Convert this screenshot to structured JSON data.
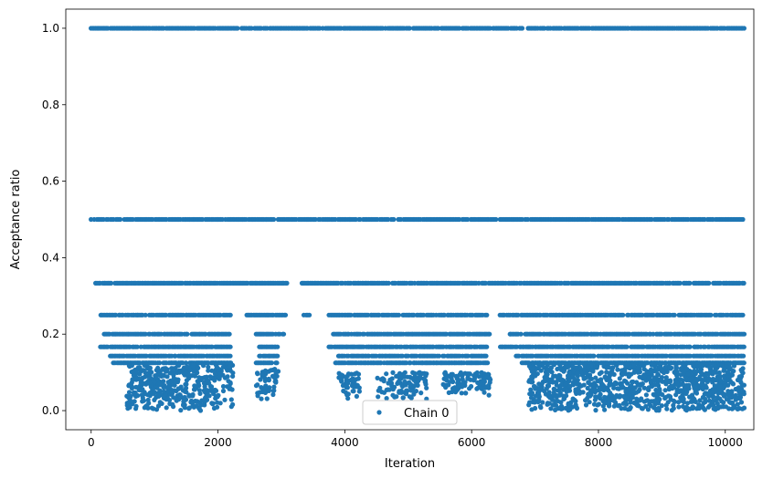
{
  "chart_data": {
    "type": "scatter",
    "title": "",
    "xlabel": "Iteration",
    "ylabel": "Acceptance ratio",
    "xlim": [
      -400,
      10450
    ],
    "ylim": [
      -0.05,
      1.05
    ],
    "x_ticks": [
      0,
      2000,
      4000,
      6000,
      8000,
      10000
    ],
    "x_tick_labels": [
      "0",
      "2000",
      "4000",
      "6000",
      "8000",
      "10000"
    ],
    "y_ticks": [
      0.0,
      0.2,
      0.4,
      0.6,
      0.8,
      1.0
    ],
    "y_tick_labels": [
      "0.0",
      "0.2",
      "0.4",
      "0.6",
      "0.8",
      "1.0"
    ],
    "grid": false,
    "legend_position": "bottom-center",
    "series": [
      {
        "name": "Chain 0",
        "color": "#1f77b4",
        "marker": "circle",
        "bands": [
          {
            "y": 1.0,
            "segments": [
              [
                0,
                10300
              ]
            ]
          },
          {
            "y": 0.5,
            "segments": [
              [
                0,
                10300
              ]
            ]
          },
          {
            "y": 0.3333,
            "segments": [
              [
                50,
                3100
              ],
              [
                3300,
                10300
              ]
            ]
          },
          {
            "y": 0.25,
            "segments": [
              [
                150,
                2200
              ],
              [
                2450,
                3100
              ],
              [
                3350,
                3450
              ],
              [
                3750,
                6250
              ],
              [
                6450,
                10300
              ]
            ]
          },
          {
            "y": 0.2,
            "segments": [
              [
                200,
                2200
              ],
              [
                2600,
                3050
              ],
              [
                3800,
                6300
              ],
              [
                6600,
                10300
              ]
            ]
          },
          {
            "y": 0.1667,
            "segments": [
              [
                150,
                2200
              ],
              [
                2650,
                2950
              ],
              [
                3750,
                6250
              ],
              [
                6450,
                10300
              ]
            ]
          },
          {
            "y": 0.1429,
            "segments": [
              [
                300,
                2200
              ],
              [
                2650,
                2950
              ],
              [
                3900,
                6250
              ],
              [
                6700,
                10300
              ]
            ]
          },
          {
            "y": 0.125,
            "segments": [
              [
                350,
                2200
              ],
              [
                2600,
                2950
              ],
              [
                3850,
                6250
              ],
              [
                6800,
                10300
              ]
            ]
          }
        ],
        "clusters": [
          {
            "x": [
              550,
              2250
            ],
            "y": [
              0.0,
              0.12
            ],
            "density": 0.85
          },
          {
            "x": [
              2600,
              2950
            ],
            "y": [
              0.03,
              0.11
            ],
            "density": 0.5
          },
          {
            "x": [
              3900,
              4250
            ],
            "y": [
              0.03,
              0.1
            ],
            "density": 0.5
          },
          {
            "x": [
              4500,
              5300
            ],
            "y": [
              0.03,
              0.1
            ],
            "density": 0.45
          },
          {
            "x": [
              5550,
              6300
            ],
            "y": [
              0.04,
              0.1
            ],
            "density": 0.5
          },
          {
            "x": [
              6900,
              10300
            ],
            "y": [
              0.0,
              0.12
            ],
            "density": 1.0
          }
        ]
      }
    ]
  }
}
